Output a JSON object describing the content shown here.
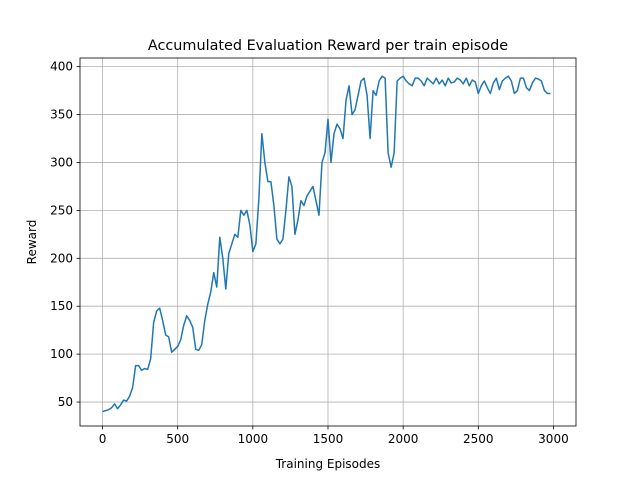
{
  "chart_data": {
    "type": "line",
    "title": "Accumulated Evaluation Reward per train episode",
    "x_label": "Training Episodes",
    "y_label": "Reward",
    "x": [
      0,
      20,
      40,
      60,
      80,
      100,
      120,
      140,
      160,
      180,
      200,
      220,
      240,
      260,
      280,
      300,
      320,
      340,
      360,
      380,
      400,
      420,
      440,
      460,
      480,
      500,
      520,
      540,
      560,
      580,
      600,
      620,
      640,
      660,
      680,
      700,
      720,
      740,
      760,
      780,
      800,
      820,
      840,
      860,
      880,
      900,
      920,
      940,
      960,
      980,
      1000,
      1020,
      1040,
      1060,
      1080,
      1100,
      1120,
      1140,
      1160,
      1180,
      1200,
      1220,
      1240,
      1260,
      1280,
      1300,
      1320,
      1340,
      1360,
      1380,
      1400,
      1420,
      1440,
      1460,
      1480,
      1500,
      1520,
      1540,
      1560,
      1580,
      1600,
      1620,
      1640,
      1660,
      1680,
      1700,
      1720,
      1740,
      1760,
      1780,
      1800,
      1820,
      1840,
      1860,
      1880,
      1900,
      1920,
      1940,
      1960,
      1980,
      2000,
      2020,
      2040,
      2060,
      2080,
      2100,
      2120,
      2140,
      2160,
      2180,
      2200,
      2220,
      2240,
      2260,
      2280,
      2300,
      2320,
      2340,
      2360,
      2380,
      2400,
      2420,
      2440,
      2460,
      2480,
      2500,
      2520,
      2540,
      2560,
      2580,
      2600,
      2620,
      2640,
      2660,
      2680,
      2700,
      2720,
      2740,
      2760,
      2780,
      2800,
      2820,
      2840,
      2860,
      2880,
      2900,
      2920,
      2940,
      2960,
      2980
    ],
    "series": [
      {
        "name": "Reward",
        "color": "#1f77b4",
        "values": [
          40,
          41,
          42,
          44,
          48,
          43,
          47,
          52,
          51,
          56,
          65,
          88,
          88,
          83,
          85,
          84,
          95,
          133,
          145,
          148,
          135,
          120,
          118,
          102,
          105,
          108,
          115,
          130,
          140,
          135,
          128,
          105,
          104,
          110,
          135,
          152,
          165,
          185,
          170,
          222,
          200,
          168,
          205,
          215,
          225,
          222,
          250,
          245,
          250,
          235,
          207,
          215,
          262,
          330,
          300,
          280,
          280,
          255,
          220,
          215,
          220,
          250,
          285,
          275,
          225,
          240,
          260,
          255,
          265,
          270,
          275,
          260,
          245,
          300,
          310,
          345,
          300,
          330,
          340,
          335,
          325,
          365,
          380,
          350,
          355,
          370,
          385,
          388,
          370,
          325,
          375,
          370,
          385,
          390,
          388,
          310,
          295,
          310,
          385,
          388,
          390,
          385,
          382,
          380,
          388,
          388,
          385,
          380,
          388,
          385,
          382,
          388,
          382,
          386,
          380,
          388,
          383,
          384,
          388,
          386,
          382,
          388,
          380,
          386,
          384,
          372,
          380,
          385,
          378,
          372,
          383,
          388,
          376,
          385,
          388,
          390,
          385,
          372,
          375,
          388,
          388,
          378,
          375,
          383,
          388,
          387,
          385,
          375,
          372,
          372
        ]
      }
    ],
    "xlim": [
      -150,
      3150
    ],
    "ylim": [
      25,
      409
    ],
    "xticks": [
      0,
      500,
      1000,
      1500,
      2000,
      2500,
      3000
    ],
    "yticks": [
      50,
      100,
      150,
      200,
      250,
      300,
      350,
      400
    ],
    "grid": true
  }
}
